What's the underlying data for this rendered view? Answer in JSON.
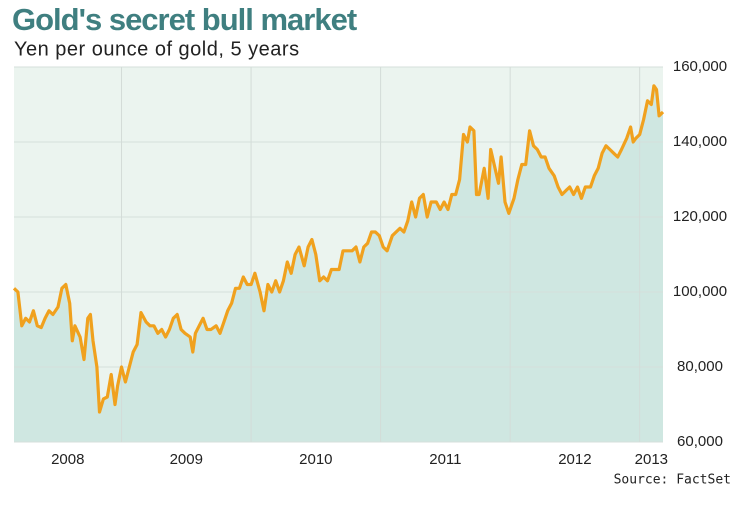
{
  "chart_data": {
    "type": "area-line",
    "title": "Gold's secret bull market",
    "subtitle": "Yen per ounce of gold, 5 years",
    "source": "Source: FactSet",
    "x": [
      2008.17,
      2008.2,
      2008.23,
      2008.26,
      2008.29,
      2008.32,
      2008.35,
      2008.38,
      2008.41,
      2008.44,
      2008.47,
      2008.51,
      2008.54,
      2008.57,
      2008.6,
      2008.62,
      2008.64,
      2008.68,
      2008.71,
      2008.74,
      2008.76,
      2008.78,
      2008.81,
      2008.83,
      2008.86,
      2008.89,
      2008.92,
      2008.95,
      2008.97,
      2009.0,
      2009.03,
      2009.06,
      2009.09,
      2009.12,
      2009.15,
      2009.19,
      2009.22,
      2009.25,
      2009.28,
      2009.31,
      2009.34,
      2009.37,
      2009.4,
      2009.43,
      2009.46,
      2009.49,
      2009.53,
      2009.55,
      2009.57,
      2009.6,
      2009.63,
      2009.66,
      2009.69,
      2009.73,
      2009.76,
      2009.79,
      2009.82,
      2009.85,
      2009.88,
      2009.91,
      2009.94,
      2009.97,
      2010.0,
      2010.03,
      2010.07,
      2010.1,
      2010.13,
      2010.16,
      2010.19,
      2010.22,
      2010.25,
      2010.28,
      2010.31,
      2010.34,
      2010.37,
      2010.41,
      2010.44,
      2010.47,
      2010.5,
      2010.53,
      2010.56,
      2010.59,
      2010.62,
      2010.65,
      2010.68,
      2010.71,
      2010.75,
      2010.78,
      2010.81,
      2010.84,
      2010.87,
      2010.9,
      2010.93,
      2010.96,
      2010.99,
      2011.02,
      2011.05,
      2011.09,
      2011.12,
      2011.15,
      2011.18,
      2011.21,
      2011.24,
      2011.27,
      2011.3,
      2011.33,
      2011.36,
      2011.39,
      2011.43,
      2011.46,
      2011.49,
      2011.52,
      2011.55,
      2011.58,
      2011.61,
      2011.64,
      2011.67,
      2011.69,
      2011.72,
      2011.74,
      2011.76,
      2011.8,
      2011.83,
      2011.85,
      2011.89,
      2011.91,
      2011.93,
      2011.96,
      2011.99,
      2012.03,
      2012.06,
      2012.09,
      2012.12,
      2012.15,
      2012.18,
      2012.21,
      2012.24,
      2012.27,
      2012.3,
      2012.34,
      2012.37,
      2012.4,
      2012.43,
      2012.46,
      2012.49,
      2012.52,
      2012.55,
      2012.58,
      2012.62,
      2012.65,
      2012.68,
      2012.71,
      2012.74,
      2012.77,
      2012.8,
      2012.83,
      2012.86,
      2012.9,
      2012.93,
      2012.95,
      2012.97,
      2013.0,
      2013.03,
      2013.06,
      2013.09,
      2013.11,
      2013.13,
      2013.15,
      2013.18
    ],
    "values": [
      101000,
      100000,
      91000,
      93000,
      92000,
      95000,
      91000,
      90500,
      93000,
      95000,
      94000,
      96000,
      101000,
      102000,
      97000,
      87000,
      91000,
      88000,
      82000,
      93000,
      94000,
      87000,
      80000,
      68000,
      71500,
      72000,
      78000,
      70000,
      75000,
      80000,
      76000,
      80000,
      84000,
      86000,
      94500,
      92000,
      91000,
      91000,
      89000,
      90000,
      88000,
      90000,
      93000,
      94000,
      90000,
      89000,
      88000,
      84000,
      89000,
      91000,
      93000,
      90000,
      90000,
      91000,
      89000,
      92000,
      95000,
      97000,
      101000,
      101000,
      104000,
      102000,
      102000,
      105000,
      100000,
      95000,
      102000,
      100000,
      103000,
      100000,
      103000,
      108000,
      105000,
      110000,
      112000,
      107000,
      112000,
      114000,
      110000,
      103000,
      104000,
      103000,
      106000,
      106000,
      106000,
      111000,
      111000,
      111000,
      112000,
      108000,
      112000,
      113000,
      116000,
      116000,
      115000,
      112000,
      111000,
      115000,
      116000,
      117000,
      116000,
      119000,
      124000,
      120000,
      125000,
      126000,
      120000,
      124000,
      124000,
      122000,
      124000,
      122000,
      126000,
      126000,
      130000,
      142000,
      140000,
      144000,
      143000,
      126000,
      126000,
      133000,
      125000,
      138000,
      132000,
      129000,
      136000,
      124000,
      121000,
      125000,
      130000,
      134000,
      134000,
      143000,
      139000,
      138000,
      136000,
      136000,
      133000,
      131000,
      128000,
      126000,
      127000,
      128000,
      126000,
      128000,
      125000,
      128000,
      128000,
      131000,
      133000,
      137000,
      139000,
      138000,
      137000,
      136000,
      138000,
      141000,
      144000,
      140000,
      141000,
      142000,
      146000,
      151000,
      150000,
      155000,
      154000,
      147000,
      148000
    ],
    "color": "#f0a11e",
    "area_color": "#cfe7e1",
    "background": "#ebf4ef",
    "xlim": [
      2008.17,
      2013.18
    ],
    "xticks": [
      2008,
      2009,
      2010,
      2011,
      2012,
      2013
    ],
    "ylim": [
      60000,
      160000
    ],
    "yticks": [
      {
        "value": 60000,
        "label": "60,000"
      },
      {
        "value": 80000,
        "label": "80,000"
      },
      {
        "value": 100000,
        "label": "100,000"
      },
      {
        "value": 120000,
        "label": "120,000"
      },
      {
        "value": 140000,
        "label": "140,000"
      },
      {
        "value": 160000,
        "label": "160,000"
      }
    ],
    "grid": true
  }
}
